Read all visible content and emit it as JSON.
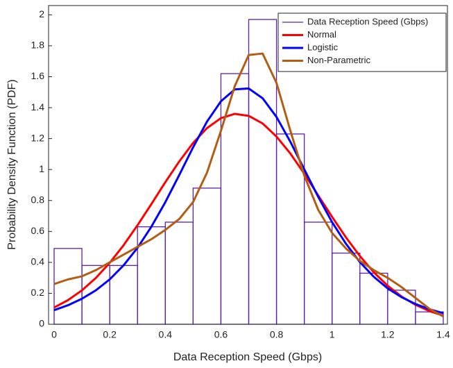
{
  "chart_data": {
    "type": "histogram",
    "xlabel": "Data Reception Speed (Gbps)",
    "ylabel": "Probability Density Function (PDF)",
    "histogram": {
      "name": "Data Reception Speed (Gbps)",
      "color": "#5b1fb5",
      "bins": [
        0,
        0.1,
        0.2,
        0.3,
        0.4,
        0.5,
        0.6,
        0.7,
        0.8,
        0.9,
        1.0,
        1.1,
        1.2,
        1.3,
        1.4
      ],
      "values": [
        0.49,
        0.38,
        0.38,
        0.63,
        0.66,
        0.88,
        1.62,
        1.97,
        1.23,
        0.66,
        0.46,
        0.33,
        0.22,
        0.08
      ]
    },
    "x": [
      0,
      0.05,
      0.1,
      0.15,
      0.2,
      0.25,
      0.3,
      0.35,
      0.4,
      0.45,
      0.5,
      0.55,
      0.6,
      0.65,
      0.7,
      0.75,
      0.8,
      0.85,
      0.9,
      0.95,
      1.0,
      1.05,
      1.1,
      1.15,
      1.2,
      1.25,
      1.3,
      1.35,
      1.4
    ],
    "series": [
      {
        "name": "Normal",
        "color": "#ff0000",
        "values": [
          0.108,
          0.156,
          0.219,
          0.299,
          0.397,
          0.511,
          0.64,
          0.777,
          0.918,
          1.052,
          1.172,
          1.268,
          1.332,
          1.36,
          1.347,
          1.298,
          1.213,
          1.103,
          0.973,
          0.833,
          0.694,
          0.561,
          0.441,
          0.336,
          0.249,
          0.179,
          0.126,
          0.085,
          0.056
        ]
      },
      {
        "name": "Logistic",
        "color": "#0000ff",
        "values": [
          0.091,
          0.123,
          0.165,
          0.219,
          0.29,
          0.381,
          0.494,
          0.631,
          0.789,
          0.964,
          1.144,
          1.31,
          1.441,
          1.518,
          1.524,
          1.461,
          1.34,
          1.179,
          1.001,
          0.824,
          0.66,
          0.52,
          0.402,
          0.307,
          0.232,
          0.175,
          0.131,
          0.097,
          0.072
        ]
      },
      {
        "name": "Non-Parametric",
        "color": "#b35c12",
        "values": [
          0.26,
          0.29,
          0.31,
          0.35,
          0.4,
          0.45,
          0.5,
          0.55,
          0.61,
          0.68,
          0.79,
          0.98,
          1.25,
          1.54,
          1.74,
          1.75,
          1.56,
          1.25,
          0.96,
          0.74,
          0.59,
          0.49,
          0.41,
          0.35,
          0.3,
          0.24,
          0.17,
          0.1,
          0.05
        ]
      }
    ],
    "xlim": [
      -0.02,
      1.415
    ],
    "ylim": [
      0,
      2.06
    ],
    "xticks": [
      0,
      0.2,
      0.4,
      0.6,
      0.8,
      1,
      1.2,
      1.4
    ],
    "yticks": [
      0,
      0.2,
      0.4,
      0.6,
      0.8,
      1,
      1.2,
      1.4,
      1.6,
      1.8,
      2
    ],
    "legend": "upper right"
  }
}
